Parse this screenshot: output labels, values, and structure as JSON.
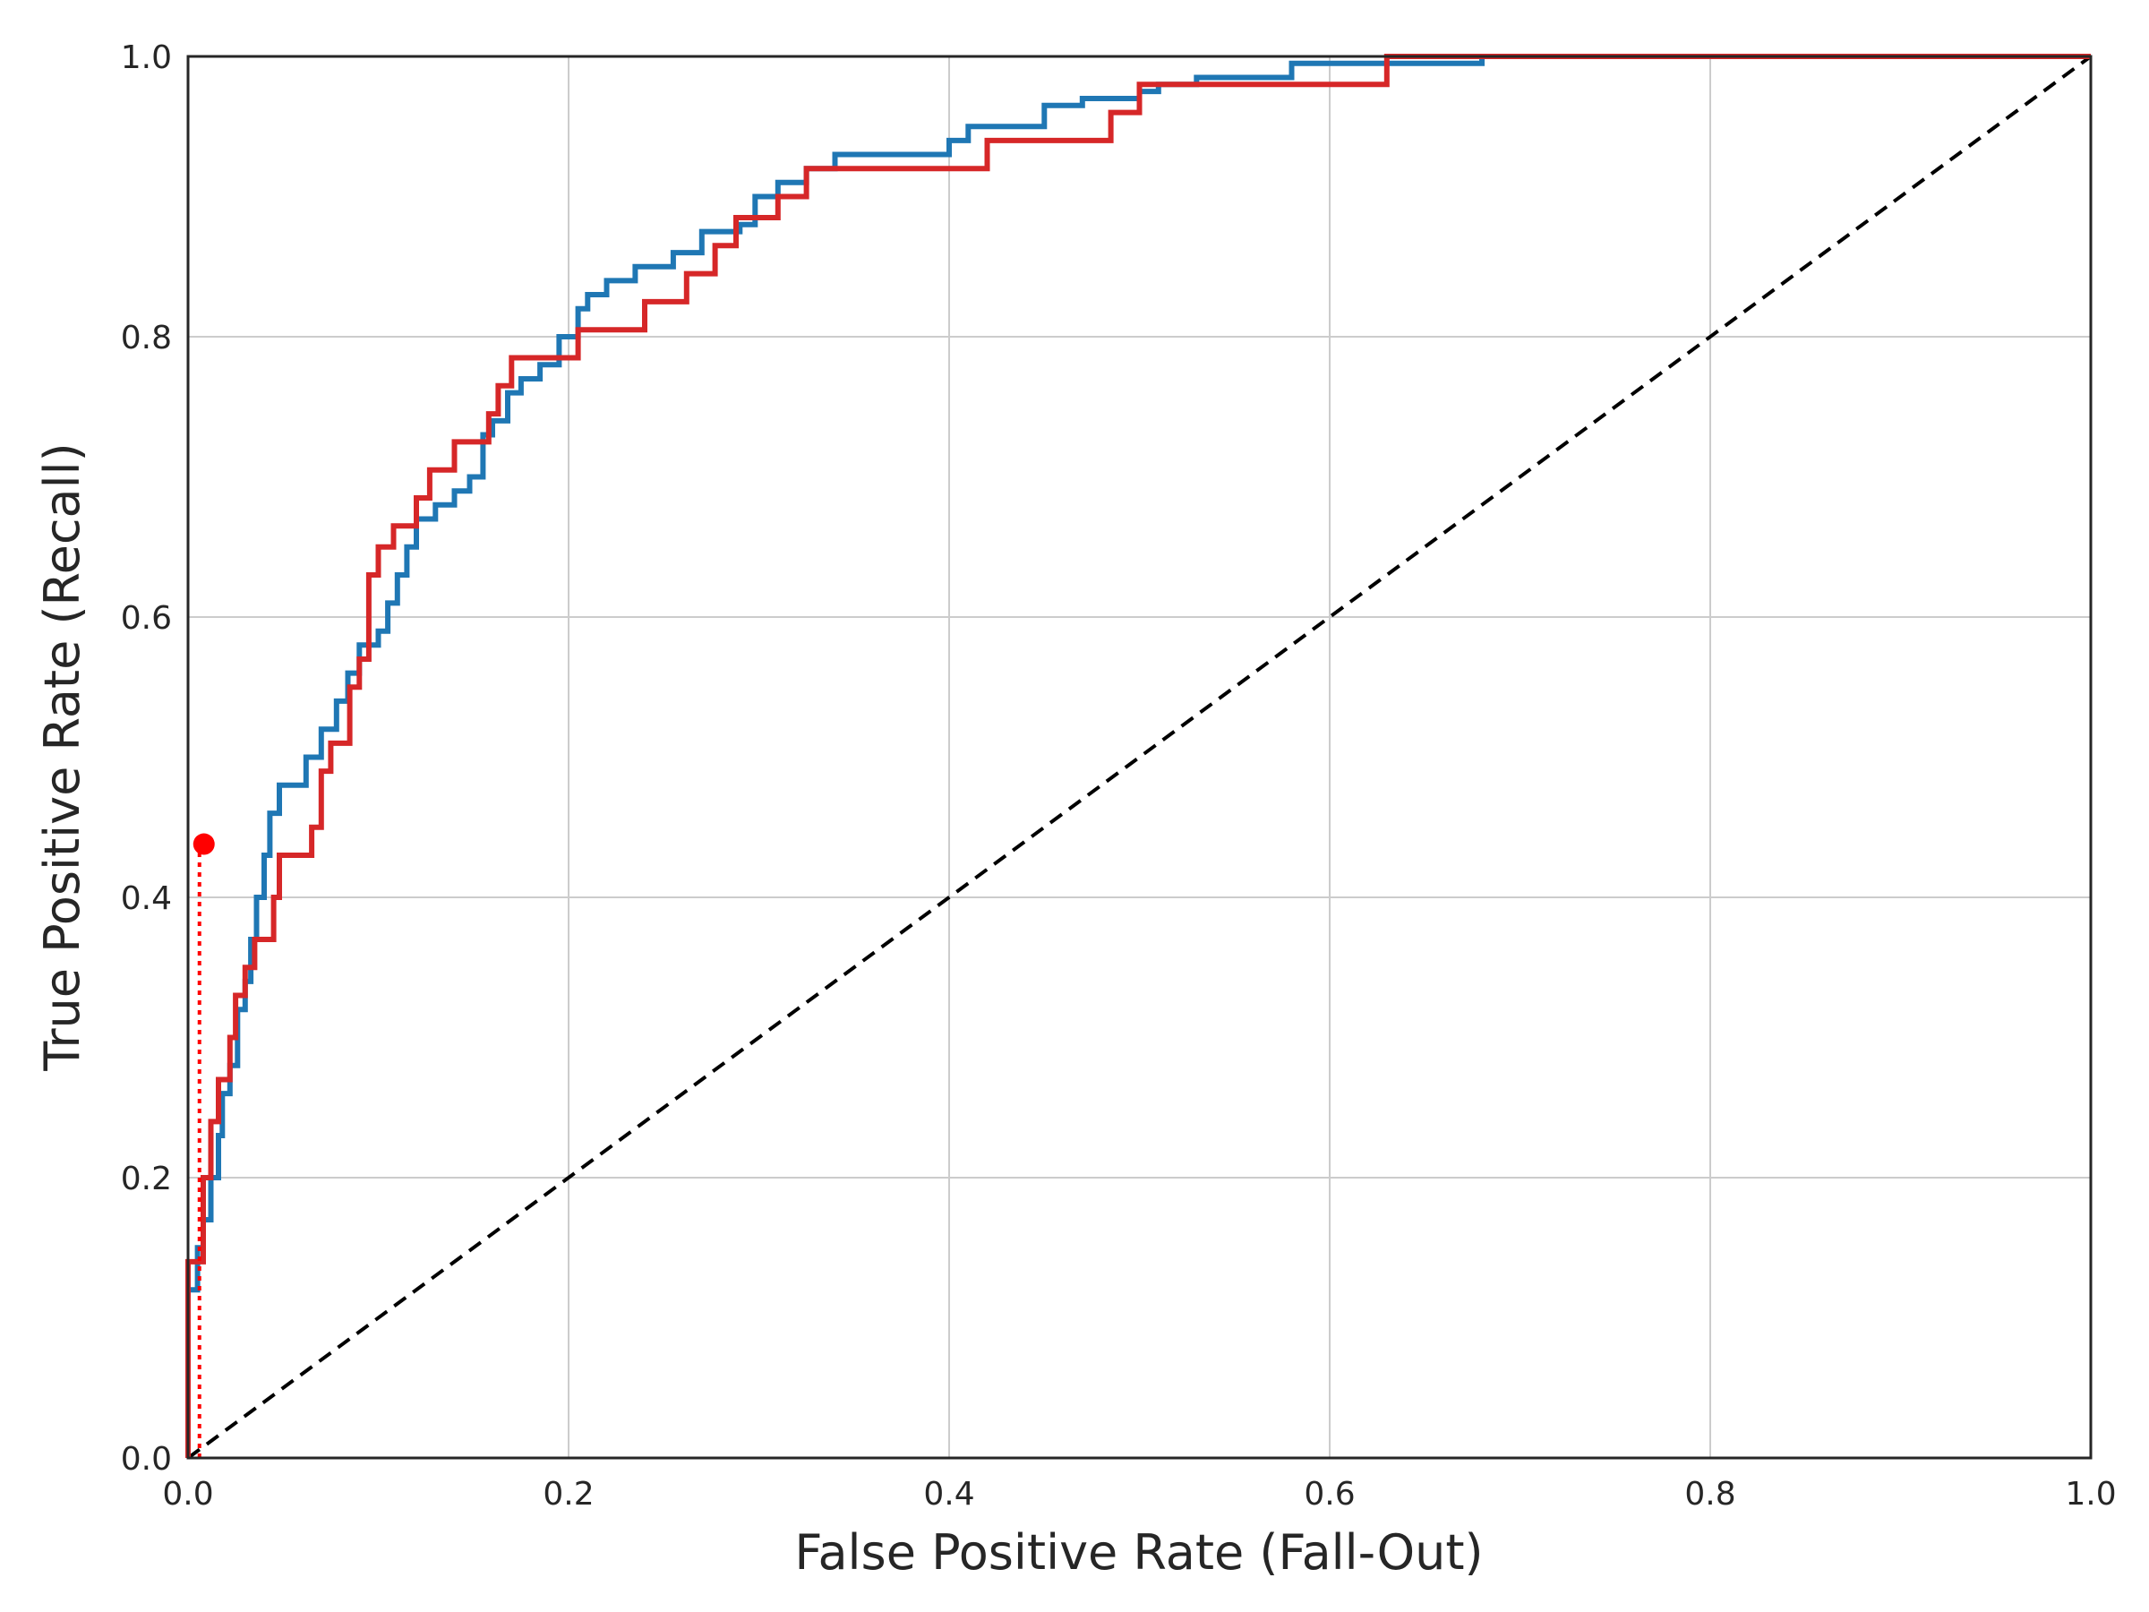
{
  "chart_data": {
    "type": "line",
    "title": "",
    "xlabel": "False Positive Rate (Fall-Out)",
    "ylabel": "True Positive Rate (Recall)",
    "xlim": [
      0,
      1
    ],
    "ylim": [
      0,
      1
    ],
    "grid": true,
    "legend": "none",
    "xticks": [
      "0.0",
      "0.2",
      "0.4",
      "0.6",
      "0.8",
      "1.0"
    ],
    "yticks": [
      "0.0",
      "0.2",
      "0.4",
      "0.6",
      "0.8",
      "1.0"
    ],
    "colors": {
      "blue": "#1f77b4",
      "red": "#d62728",
      "marker": "#ff0000",
      "diagonal": "#000000",
      "grid": "#cccccc",
      "axes": "#262626"
    },
    "series": [
      {
        "color": "#1f77b4",
        "step": true,
        "points": [
          [
            0.0,
            0.0
          ],
          [
            0.0,
            0.12
          ],
          [
            0.005,
            0.12
          ],
          [
            0.005,
            0.15
          ],
          [
            0.008,
            0.15
          ],
          [
            0.008,
            0.17
          ],
          [
            0.012,
            0.17
          ],
          [
            0.012,
            0.2
          ],
          [
            0.016,
            0.2
          ],
          [
            0.016,
            0.23
          ],
          [
            0.018,
            0.23
          ],
          [
            0.018,
            0.26
          ],
          [
            0.022,
            0.26
          ],
          [
            0.022,
            0.28
          ],
          [
            0.026,
            0.28
          ],
          [
            0.026,
            0.32
          ],
          [
            0.03,
            0.32
          ],
          [
            0.03,
            0.34
          ],
          [
            0.033,
            0.34
          ],
          [
            0.033,
            0.37
          ],
          [
            0.036,
            0.37
          ],
          [
            0.036,
            0.4
          ],
          [
            0.04,
            0.4
          ],
          [
            0.04,
            0.43
          ],
          [
            0.043,
            0.43
          ],
          [
            0.043,
            0.46
          ],
          [
            0.048,
            0.46
          ],
          [
            0.048,
            0.48
          ],
          [
            0.062,
            0.48
          ],
          [
            0.062,
            0.5
          ],
          [
            0.07,
            0.5
          ],
          [
            0.07,
            0.52
          ],
          [
            0.078,
            0.52
          ],
          [
            0.078,
            0.54
          ],
          [
            0.084,
            0.54
          ],
          [
            0.084,
            0.56
          ],
          [
            0.09,
            0.56
          ],
          [
            0.09,
            0.58
          ],
          [
            0.1,
            0.58
          ],
          [
            0.1,
            0.59
          ],
          [
            0.105,
            0.59
          ],
          [
            0.105,
            0.61
          ],
          [
            0.11,
            0.61
          ],
          [
            0.11,
            0.63
          ],
          [
            0.115,
            0.63
          ],
          [
            0.115,
            0.65
          ],
          [
            0.12,
            0.65
          ],
          [
            0.12,
            0.67
          ],
          [
            0.13,
            0.67
          ],
          [
            0.13,
            0.68
          ],
          [
            0.14,
            0.68
          ],
          [
            0.14,
            0.69
          ],
          [
            0.148,
            0.69
          ],
          [
            0.148,
            0.7
          ],
          [
            0.155,
            0.7
          ],
          [
            0.155,
            0.73
          ],
          [
            0.16,
            0.73
          ],
          [
            0.16,
            0.74
          ],
          [
            0.168,
            0.74
          ],
          [
            0.168,
            0.76
          ],
          [
            0.175,
            0.76
          ],
          [
            0.175,
            0.77
          ],
          [
            0.185,
            0.77
          ],
          [
            0.185,
            0.78
          ],
          [
            0.195,
            0.78
          ],
          [
            0.195,
            0.8
          ],
          [
            0.205,
            0.8
          ],
          [
            0.205,
            0.82
          ],
          [
            0.21,
            0.82
          ],
          [
            0.21,
            0.83
          ],
          [
            0.22,
            0.83
          ],
          [
            0.22,
            0.84
          ],
          [
            0.235,
            0.84
          ],
          [
            0.235,
            0.85
          ],
          [
            0.255,
            0.85
          ],
          [
            0.255,
            0.86
          ],
          [
            0.27,
            0.86
          ],
          [
            0.27,
            0.875
          ],
          [
            0.29,
            0.875
          ],
          [
            0.29,
            0.88
          ],
          [
            0.298,
            0.88
          ],
          [
            0.298,
            0.9
          ],
          [
            0.31,
            0.9
          ],
          [
            0.31,
            0.91
          ],
          [
            0.325,
            0.91
          ],
          [
            0.325,
            0.92
          ],
          [
            0.34,
            0.92
          ],
          [
            0.34,
            0.93
          ],
          [
            0.4,
            0.93
          ],
          [
            0.4,
            0.94
          ],
          [
            0.41,
            0.94
          ],
          [
            0.41,
            0.95
          ],
          [
            0.45,
            0.95
          ],
          [
            0.45,
            0.965
          ],
          [
            0.47,
            0.965
          ],
          [
            0.47,
            0.97
          ],
          [
            0.5,
            0.97
          ],
          [
            0.5,
            0.975
          ],
          [
            0.51,
            0.975
          ],
          [
            0.51,
            0.98
          ],
          [
            0.53,
            0.98
          ],
          [
            0.53,
            0.985
          ],
          [
            0.58,
            0.985
          ],
          [
            0.58,
            0.995
          ],
          [
            0.68,
            0.995
          ],
          [
            0.68,
            1.0
          ],
          [
            1.0,
            1.0
          ]
        ]
      },
      {
        "color": "#d62728",
        "step": true,
        "points": [
          [
            0.0,
            0.0
          ],
          [
            0.0,
            0.14
          ],
          [
            0.008,
            0.14
          ],
          [
            0.008,
            0.2
          ],
          [
            0.012,
            0.2
          ],
          [
            0.012,
            0.24
          ],
          [
            0.016,
            0.24
          ],
          [
            0.016,
            0.27
          ],
          [
            0.022,
            0.27
          ],
          [
            0.022,
            0.3
          ],
          [
            0.025,
            0.3
          ],
          [
            0.025,
            0.33
          ],
          [
            0.03,
            0.33
          ],
          [
            0.03,
            0.35
          ],
          [
            0.035,
            0.35
          ],
          [
            0.035,
            0.37
          ],
          [
            0.045,
            0.37
          ],
          [
            0.045,
            0.4
          ],
          [
            0.048,
            0.4
          ],
          [
            0.048,
            0.43
          ],
          [
            0.065,
            0.43
          ],
          [
            0.065,
            0.45
          ],
          [
            0.07,
            0.45
          ],
          [
            0.07,
            0.49
          ],
          [
            0.075,
            0.49
          ],
          [
            0.075,
            0.51
          ],
          [
            0.085,
            0.51
          ],
          [
            0.085,
            0.55
          ],
          [
            0.09,
            0.55
          ],
          [
            0.09,
            0.57
          ],
          [
            0.095,
            0.57
          ],
          [
            0.095,
            0.63
          ],
          [
            0.1,
            0.63
          ],
          [
            0.1,
            0.65
          ],
          [
            0.108,
            0.65
          ],
          [
            0.108,
            0.665
          ],
          [
            0.12,
            0.665
          ],
          [
            0.12,
            0.685
          ],
          [
            0.127,
            0.685
          ],
          [
            0.127,
            0.705
          ],
          [
            0.14,
            0.705
          ],
          [
            0.14,
            0.725
          ],
          [
            0.158,
            0.725
          ],
          [
            0.158,
            0.745
          ],
          [
            0.163,
            0.745
          ],
          [
            0.163,
            0.765
          ],
          [
            0.17,
            0.765
          ],
          [
            0.17,
            0.785
          ],
          [
            0.205,
            0.785
          ],
          [
            0.205,
            0.805
          ],
          [
            0.24,
            0.805
          ],
          [
            0.24,
            0.825
          ],
          [
            0.262,
            0.825
          ],
          [
            0.262,
            0.845
          ],
          [
            0.277,
            0.845
          ],
          [
            0.277,
            0.865
          ],
          [
            0.288,
            0.865
          ],
          [
            0.288,
            0.885
          ],
          [
            0.31,
            0.885
          ],
          [
            0.31,
            0.9
          ],
          [
            0.325,
            0.9
          ],
          [
            0.325,
            0.92
          ],
          [
            0.42,
            0.92
          ],
          [
            0.42,
            0.94
          ],
          [
            0.485,
            0.94
          ],
          [
            0.485,
            0.96
          ],
          [
            0.5,
            0.96
          ],
          [
            0.5,
            0.98
          ],
          [
            0.63,
            0.98
          ],
          [
            0.63,
            1.0
          ],
          [
            1.0,
            1.0
          ]
        ]
      }
    ],
    "diagonal": [
      [
        0,
        0
      ],
      [
        1,
        1
      ]
    ],
    "marker": {
      "x": 0.006,
      "y": 0.438,
      "color": "#ff0000"
    }
  }
}
